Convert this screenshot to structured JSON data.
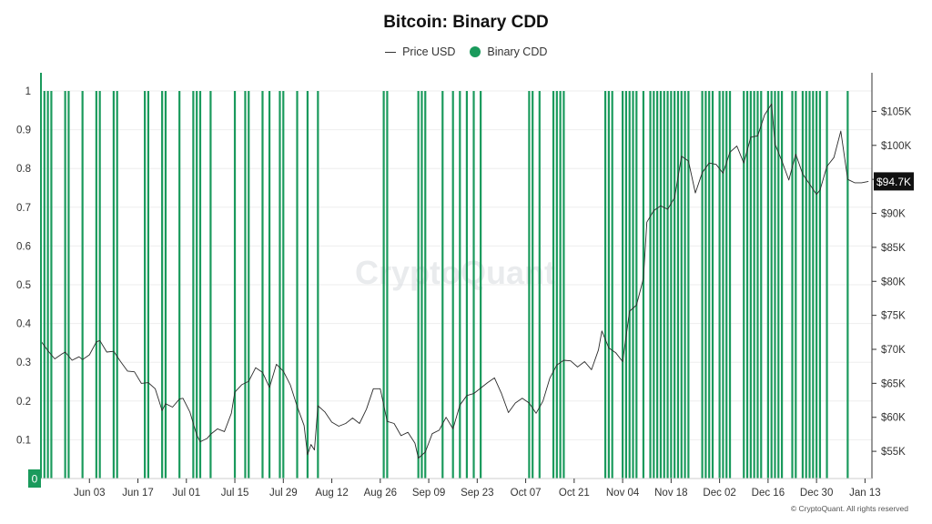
{
  "title": "Bitcoin: Binary CDD",
  "legend": {
    "price_label": "Price USD",
    "cdd_label": "Binary CDD"
  },
  "watermark": "CryptoQuant",
  "copyright": "© CryptoQuant. All rights reserved",
  "colors": {
    "price": "#2b2b2b",
    "cdd": "#1a9a5c",
    "badge_bg": "#111111",
    "badge_text": "#ffffff"
  },
  "chart_data": {
    "type": "line",
    "title": "Bitcoin: Binary CDD",
    "x_ticks": [
      "Jun 03",
      "Jun 17",
      "Jul 01",
      "Jul 15",
      "Jul 29",
      "Aug 12",
      "Aug 26",
      "Sep 09",
      "Sep 23",
      "Oct 07",
      "Oct 21",
      "Nov 04",
      "Nov 18",
      "Dec 02",
      "Dec 16",
      "Dec 30",
      "Jan 13"
    ],
    "x_start": "2024-05-20",
    "x_end": "2025-01-15",
    "left_axis": {
      "ticks": [
        0,
        0.1,
        0.2,
        0.3,
        0.4,
        0.5,
        0.6,
        0.7,
        0.8,
        0.9,
        1
      ],
      "tick_labels": [
        "0",
        "0.1",
        "0.2",
        "0.3",
        "0.4",
        "0.5",
        "0.6",
        "0.7",
        "0.8",
        "0.9",
        "1"
      ],
      "range": [
        0,
        1
      ]
    },
    "right_axis": {
      "ticks": [
        55000,
        60000,
        65000,
        70000,
        75000,
        80000,
        85000,
        90000,
        95000,
        100000,
        105000
      ],
      "tick_labels": [
        "$55K",
        "$60K",
        "$65K",
        "$70K",
        "$75K",
        "$80K",
        "$85K",
        "$90K",
        "$95K",
        "$100K",
        "$105K"
      ],
      "range": [
        51000,
        108000
      ]
    },
    "current_price_label": "$94.7K",
    "current_price": 94700,
    "current_cdd_label": "0",
    "series": [
      {
        "name": "Price USD",
        "axis": "right",
        "points": [
          [
            "2024-05-20",
            71200
          ],
          [
            "2024-05-22",
            69800
          ],
          [
            "2024-05-24",
            68600
          ],
          [
            "2024-05-26",
            69300
          ],
          [
            "2024-05-27",
            69600
          ],
          [
            "2024-05-29",
            68400
          ],
          [
            "2024-05-31",
            68900
          ],
          [
            "2024-06-01",
            68500
          ],
          [
            "2024-06-03",
            69200
          ],
          [
            "2024-06-05",
            71100
          ],
          [
            "2024-06-06",
            71300
          ],
          [
            "2024-06-08",
            69600
          ],
          [
            "2024-06-10",
            69700
          ],
          [
            "2024-06-12",
            68200
          ],
          [
            "2024-06-14",
            66800
          ],
          [
            "2024-06-16",
            66700
          ],
          [
            "2024-06-18",
            65000
          ],
          [
            "2024-06-20",
            65100
          ],
          [
            "2024-06-22",
            64200
          ],
          [
            "2024-06-24",
            61000
          ],
          [
            "2024-06-25",
            62000
          ],
          [
            "2024-06-27",
            61500
          ],
          [
            "2024-06-29",
            62700
          ],
          [
            "2024-06-30",
            62800
          ],
          [
            "2024-07-02",
            60800
          ],
          [
            "2024-07-04",
            57400
          ],
          [
            "2024-07-05",
            56400
          ],
          [
            "2024-07-07",
            56900
          ],
          [
            "2024-07-08",
            57500
          ],
          [
            "2024-07-10",
            58300
          ],
          [
            "2024-07-12",
            57900
          ],
          [
            "2024-07-14",
            60600
          ],
          [
            "2024-07-15",
            63700
          ],
          [
            "2024-07-17",
            64800
          ],
          [
            "2024-07-19",
            65300
          ],
          [
            "2024-07-21",
            67300
          ],
          [
            "2024-07-23",
            66600
          ],
          [
            "2024-07-25",
            64400
          ],
          [
            "2024-07-27",
            67800
          ],
          [
            "2024-07-29",
            66800
          ],
          [
            "2024-07-31",
            64800
          ],
          [
            "2024-08-02",
            61600
          ],
          [
            "2024-08-04",
            58800
          ],
          [
            "2024-08-05",
            54500
          ],
          [
            "2024-08-06",
            56000
          ],
          [
            "2024-08-07",
            55200
          ],
          [
            "2024-08-08",
            61700
          ],
          [
            "2024-08-10",
            60800
          ],
          [
            "2024-08-12",
            59300
          ],
          [
            "2024-08-14",
            58700
          ],
          [
            "2024-08-16",
            59100
          ],
          [
            "2024-08-18",
            59900
          ],
          [
            "2024-08-20",
            59100
          ],
          [
            "2024-08-22",
            61200
          ],
          [
            "2024-08-24",
            64200
          ],
          [
            "2024-08-26",
            64200
          ],
          [
            "2024-08-28",
            59400
          ],
          [
            "2024-08-30",
            59100
          ],
          [
            "2024-09-01",
            57300
          ],
          [
            "2024-09-03",
            57800
          ],
          [
            "2024-09-05",
            56200
          ],
          [
            "2024-09-06",
            54000
          ],
          [
            "2024-09-08",
            54900
          ],
          [
            "2024-09-10",
            57600
          ],
          [
            "2024-09-12",
            58100
          ],
          [
            "2024-09-14",
            60000
          ],
          [
            "2024-09-16",
            58300
          ],
          [
            "2024-09-18",
            61800
          ],
          [
            "2024-09-20",
            63200
          ],
          [
            "2024-09-22",
            63500
          ],
          [
            "2024-09-24",
            64300
          ],
          [
            "2024-09-26",
            65100
          ],
          [
            "2024-09-28",
            65800
          ],
          [
            "2024-09-30",
            63500
          ],
          [
            "2024-10-02",
            60700
          ],
          [
            "2024-10-04",
            62100
          ],
          [
            "2024-10-06",
            62800
          ],
          [
            "2024-10-08",
            62100
          ],
          [
            "2024-10-10",
            60600
          ],
          [
            "2024-10-12",
            62400
          ],
          [
            "2024-10-14",
            65800
          ],
          [
            "2024-10-16",
            67700
          ],
          [
            "2024-10-18",
            68400
          ],
          [
            "2024-10-20",
            68300
          ],
          [
            "2024-10-22",
            67400
          ],
          [
            "2024-10-24",
            68200
          ],
          [
            "2024-10-26",
            67000
          ],
          [
            "2024-10-28",
            69900
          ],
          [
            "2024-10-29",
            72700
          ],
          [
            "2024-10-31",
            70200
          ],
          [
            "2024-11-02",
            69500
          ],
          [
            "2024-11-04",
            68200
          ],
          [
            "2024-11-06",
            75600
          ],
          [
            "2024-11-08",
            76500
          ],
          [
            "2024-11-10",
            80400
          ],
          [
            "2024-11-11",
            88700
          ],
          [
            "2024-11-13",
            90400
          ],
          [
            "2024-11-15",
            91100
          ],
          [
            "2024-11-17",
            90600
          ],
          [
            "2024-11-19",
            92300
          ],
          [
            "2024-11-21",
            98400
          ],
          [
            "2024-11-23",
            97700
          ],
          [
            "2024-11-25",
            93000
          ],
          [
            "2024-11-27",
            96000
          ],
          [
            "2024-11-29",
            97400
          ],
          [
            "2024-12-01",
            97200
          ],
          [
            "2024-12-03",
            95900
          ],
          [
            "2024-12-05",
            99000
          ],
          [
            "2024-12-07",
            99900
          ],
          [
            "2024-12-09",
            97400
          ],
          [
            "2024-12-11",
            101200
          ],
          [
            "2024-12-13",
            101400
          ],
          [
            "2024-12-15",
            104500
          ],
          [
            "2024-12-17",
            106100
          ],
          [
            "2024-12-18",
            100200
          ],
          [
            "2024-12-20",
            97700
          ],
          [
            "2024-12-22",
            94900
          ],
          [
            "2024-12-24",
            98700
          ],
          [
            "2024-12-26",
            95800
          ],
          [
            "2024-12-28",
            94300
          ],
          [
            "2024-12-30",
            92800
          ],
          [
            "2024-12-31",
            93400
          ],
          [
            "2025-01-02",
            96900
          ],
          [
            "2025-01-04",
            98200
          ],
          [
            "2025-01-06",
            102100
          ],
          [
            "2025-01-08",
            95000
          ],
          [
            "2025-01-10",
            94500
          ],
          [
            "2025-01-12",
            94500
          ],
          [
            "2025-01-14",
            94700
          ]
        ]
      },
      {
        "name": "Binary CDD",
        "axis": "left",
        "type": "spikes",
        "value": 1,
        "dates": [
          "2024-05-21",
          "2024-05-22",
          "2024-05-23",
          "2024-05-27",
          "2024-05-28",
          "2024-06-01",
          "2024-06-05",
          "2024-06-06",
          "2024-06-10",
          "2024-06-11",
          "2024-06-19",
          "2024-06-20",
          "2024-06-24",
          "2024-06-25",
          "2024-06-29",
          "2024-07-03",
          "2024-07-04",
          "2024-07-05",
          "2024-07-08",
          "2024-07-15",
          "2024-07-18",
          "2024-07-19",
          "2024-07-23",
          "2024-07-25",
          "2024-07-28",
          "2024-07-29",
          "2024-08-02",
          "2024-08-05",
          "2024-08-08",
          "2024-08-27",
          "2024-08-28",
          "2024-09-06",
          "2024-09-07",
          "2024-09-08",
          "2024-09-13",
          "2024-09-16",
          "2024-09-18",
          "2024-09-20",
          "2024-09-22",
          "2024-09-24",
          "2024-10-08",
          "2024-10-09",
          "2024-10-11",
          "2024-10-15",
          "2024-10-16",
          "2024-10-17",
          "2024-10-18",
          "2024-10-30",
          "2024-10-31",
          "2024-11-01",
          "2024-11-04",
          "2024-11-05",
          "2024-11-06",
          "2024-11-07",
          "2024-11-08",
          "2024-11-10",
          "2024-11-12",
          "2024-11-13",
          "2024-11-14",
          "2024-11-15",
          "2024-11-16",
          "2024-11-17",
          "2024-11-18",
          "2024-11-19",
          "2024-11-20",
          "2024-11-21",
          "2024-11-22",
          "2024-11-23",
          "2024-11-27",
          "2024-11-28",
          "2024-11-29",
          "2024-11-30",
          "2024-12-02",
          "2024-12-03",
          "2024-12-04",
          "2024-12-05",
          "2024-12-09",
          "2024-12-10",
          "2024-12-11",
          "2024-12-12",
          "2024-12-13",
          "2024-12-14",
          "2024-12-16",
          "2024-12-17",
          "2024-12-18",
          "2024-12-19",
          "2024-12-20",
          "2024-12-23",
          "2024-12-24",
          "2024-12-26",
          "2024-12-27",
          "2024-12-28",
          "2024-12-29",
          "2024-12-30",
          "2024-12-31",
          "2025-01-02",
          "2025-01-08"
        ]
      }
    ],
    "grid": true,
    "legend_position": "top-center"
  }
}
